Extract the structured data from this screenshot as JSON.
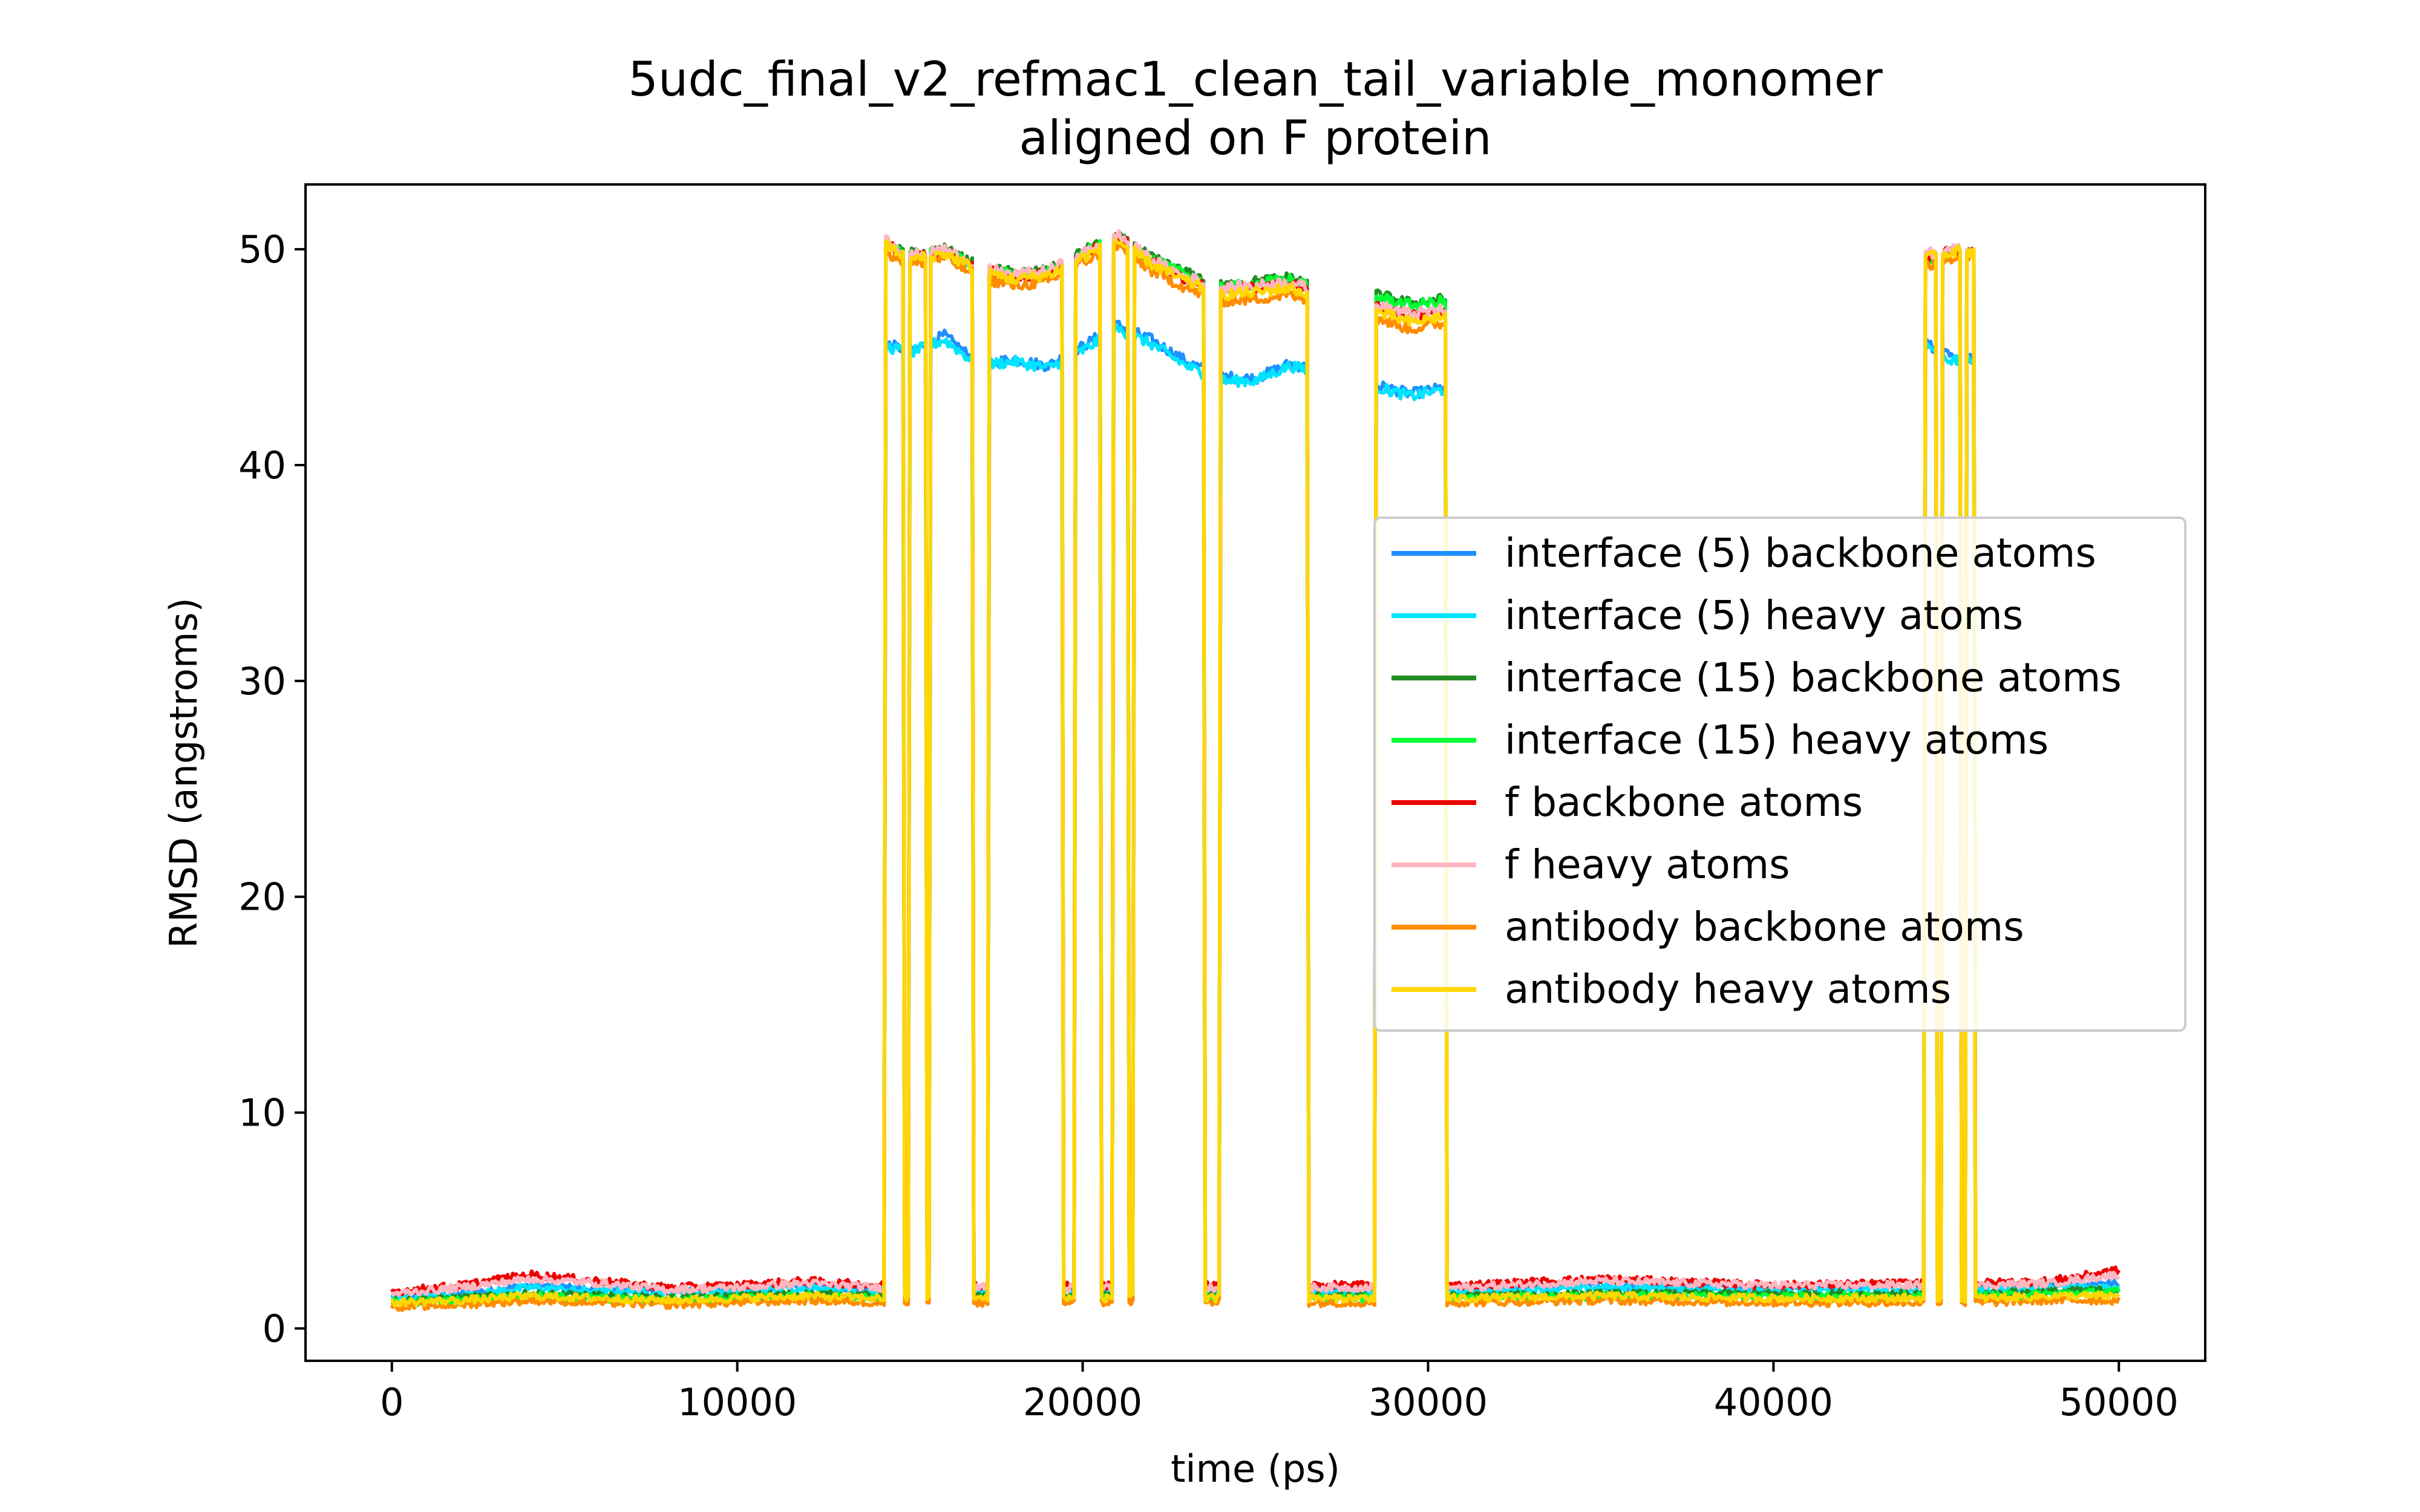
{
  "chart_data": {
    "type": "line",
    "title_lines": [
      "5udc_final_v2_refmac1_clean_tail_variable_monomer",
      "aligned on F protein"
    ],
    "xlabel": "time (ps)",
    "ylabel": "RMSD (angstroms)",
    "xlim": [
      -2500,
      52500
    ],
    "ylim": [
      -1.5,
      53
    ],
    "xticks": [
      0,
      10000,
      20000,
      30000,
      40000,
      50000
    ],
    "yticks": [
      0,
      10,
      20,
      30,
      40,
      50
    ],
    "grid": false,
    "legend_position": "center-right",
    "high_segments": [
      [
        14300,
        14800
      ],
      [
        15000,
        15450
      ],
      [
        15600,
        16800
      ],
      [
        17300,
        19400
      ],
      [
        19800,
        20500
      ],
      [
        20900,
        21300
      ],
      [
        21500,
        23500
      ],
      [
        24000,
        26500
      ],
      [
        28500,
        30500
      ],
      [
        44400,
        44700
      ],
      [
        44900,
        45400
      ],
      [
        45600,
        45800
      ]
    ],
    "series": [
      {
        "name": "interface (5) backbone atoms",
        "color": "#1e90ff",
        "x": [
          0,
          2000,
          4000,
          6000,
          8000,
          10000,
          12000,
          14000,
          14300,
          15000,
          16000,
          17000,
          18000,
          19000,
          20000,
          21000,
          22000,
          23000,
          24000,
          25000,
          26000,
          26500,
          28500,
          29500,
          30500,
          31000,
          35000,
          40000,
          44000,
          44500,
          45200,
          46000,
          48000,
          50000
        ],
        "y": [
          1.5,
          1.6,
          2.0,
          1.8,
          1.7,
          1.8,
          2.0,
          1.8,
          45.6,
          45.3,
          46.0,
          44.7,
          44.9,
          44.6,
          45.5,
          46.5,
          45.8,
          44.8,
          44.1,
          44.0,
          44.7,
          44.5,
          43.7,
          43.3,
          43.6,
          1.8,
          2.0,
          1.9,
          1.9,
          45.6,
          44.9,
          1.9,
          2.0,
          2.1
        ]
      },
      {
        "name": "interface (5) heavy atoms",
        "color": "#00e5ff",
        "x": [
          0,
          2000,
          4000,
          6000,
          8000,
          10000,
          12000,
          14000,
          14300,
          15000,
          16000,
          17000,
          18000,
          19000,
          20000,
          21000,
          22000,
          23000,
          24000,
          25000,
          26000,
          26500,
          28500,
          29500,
          30500,
          31000,
          35000,
          40000,
          44000,
          44500,
          45200,
          46000,
          48000,
          50000
        ],
        "y": [
          1.4,
          1.5,
          1.9,
          1.7,
          1.7,
          1.7,
          1.9,
          1.7,
          45.5,
          45.2,
          45.8,
          44.6,
          44.8,
          44.5,
          45.3,
          46.3,
          45.6,
          44.6,
          43.9,
          43.9,
          44.6,
          44.4,
          43.6,
          43.2,
          43.5,
          1.7,
          1.9,
          1.8,
          1.8,
          45.5,
          44.8,
          1.8,
          1.9,
          1.9
        ]
      },
      {
        "name": "interface (15) backbone atoms",
        "color": "#228b22",
        "x": [
          0,
          2000,
          4000,
          6000,
          8000,
          10000,
          12000,
          14000,
          14300,
          15000,
          16000,
          17000,
          18000,
          19000,
          20000,
          21000,
          22000,
          23000,
          24000,
          25000,
          26000,
          26500,
          28500,
          29500,
          30500,
          31000,
          35000,
          40000,
          44000,
          44500,
          45200,
          46000,
          48000,
          50000
        ],
        "y": [
          1.3,
          1.4,
          1.6,
          1.5,
          1.4,
          1.5,
          1.6,
          1.5,
          50.2,
          49.8,
          50.0,
          49.2,
          48.9,
          49.0,
          49.9,
          50.6,
          49.6,
          48.9,
          48.3,
          48.5,
          48.7,
          48.4,
          47.9,
          47.5,
          47.7,
          1.5,
          1.6,
          1.6,
          1.6,
          49.5,
          49.9,
          1.6,
          1.7,
          1.8
        ]
      },
      {
        "name": "interface (15) heavy atoms",
        "color": "#00ff33",
        "x": [
          0,
          2000,
          4000,
          6000,
          8000,
          10000,
          12000,
          14000,
          14300,
          15000,
          16000,
          17000,
          18000,
          19000,
          20000,
          21000,
          22000,
          23000,
          24000,
          25000,
          26000,
          26500,
          28500,
          29500,
          30500,
          31000,
          35000,
          40000,
          44000,
          44500,
          45200,
          46000,
          48000,
          50000
        ],
        "y": [
          1.2,
          1.3,
          1.5,
          1.4,
          1.3,
          1.4,
          1.5,
          1.4,
          50.1,
          49.7,
          49.9,
          49.1,
          48.8,
          48.9,
          49.8,
          50.5,
          49.5,
          48.8,
          48.2,
          48.4,
          48.6,
          48.3,
          47.8,
          47.4,
          47.6,
          1.4,
          1.5,
          1.5,
          1.5,
          49.4,
          49.8,
          1.5,
          1.6,
          1.7
        ]
      },
      {
        "name": "f backbone atoms",
        "color": "#ee0000",
        "x": [
          0,
          2000,
          4000,
          6000,
          8000,
          10000,
          12000,
          14000,
          14300,
          15000,
          16000,
          17000,
          18000,
          19000,
          20000,
          21000,
          22000,
          23000,
          24000,
          25000,
          26000,
          26500,
          28500,
          29500,
          30500,
          31000,
          35000,
          40000,
          44000,
          44500,
          45200,
          46000,
          48000,
          50000
        ],
        "y": [
          1.7,
          2.0,
          2.5,
          2.2,
          1.9,
          2.0,
          2.2,
          2.0,
          50.3,
          49.6,
          49.9,
          49.1,
          48.7,
          48.9,
          49.7,
          50.6,
          49.4,
          48.6,
          48.1,
          48.2,
          48.4,
          48.1,
          47.3,
          46.9,
          47.1,
          2.0,
          2.3,
          2.0,
          2.1,
          49.7,
          49.9,
          2.1,
          2.2,
          2.7
        ]
      },
      {
        "name": "f heavy atoms",
        "color": "#ffb6c1",
        "x": [
          0,
          2000,
          4000,
          6000,
          8000,
          10000,
          12000,
          14000,
          14300,
          15000,
          16000,
          17000,
          18000,
          19000,
          20000,
          21000,
          22000,
          23000,
          24000,
          25000,
          26000,
          26500,
          28500,
          29500,
          30500,
          31000,
          35000,
          40000,
          44000,
          44500,
          45200,
          46000,
          48000,
          50000
        ],
        "y": [
          1.6,
          1.9,
          2.3,
          2.1,
          1.8,
          1.9,
          2.1,
          1.9,
          50.5,
          49.7,
          50.0,
          49.2,
          48.8,
          49.0,
          49.8,
          50.7,
          49.5,
          48.7,
          48.2,
          48.3,
          48.5,
          48.2,
          47.4,
          47.0,
          47.2,
          1.9,
          2.2,
          2.0,
          2.0,
          49.8,
          50.0,
          2.0,
          2.1,
          2.5
        ]
      },
      {
        "name": "antibody backbone atoms",
        "color": "#ff8c00",
        "x": [
          0,
          2000,
          4000,
          6000,
          8000,
          10000,
          12000,
          14000,
          14300,
          15000,
          16000,
          17000,
          18000,
          19000,
          20000,
          21000,
          22000,
          23000,
          24000,
          25000,
          26000,
          26500,
          28500,
          29500,
          30500,
          31000,
          35000,
          40000,
          44000,
          44500,
          45200,
          46000,
          48000,
          50000
        ],
        "y": [
          1.0,
          1.1,
          1.3,
          1.2,
          1.1,
          1.2,
          1.3,
          1.2,
          49.9,
          49.3,
          49.6,
          48.7,
          48.3,
          48.5,
          49.4,
          50.2,
          49.0,
          48.2,
          47.6,
          47.7,
          47.9,
          47.6,
          46.8,
          46.3,
          46.6,
          1.2,
          1.3,
          1.2,
          1.2,
          49.3,
          49.6,
          1.2,
          1.3,
          1.3
        ]
      },
      {
        "name": "antibody heavy atoms",
        "color": "#ffd700",
        "x": [
          0,
          2000,
          4000,
          6000,
          8000,
          10000,
          12000,
          14000,
          14300,
          15000,
          16000,
          17000,
          18000,
          19000,
          20000,
          21000,
          22000,
          23000,
          24000,
          25000,
          26000,
          26500,
          28500,
          29500,
          30500,
          31000,
          35000,
          40000,
          44000,
          44500,
          45200,
          46000,
          48000,
          50000
        ],
        "y": [
          1.2,
          1.3,
          1.5,
          1.4,
          1.3,
          1.4,
          1.5,
          1.4,
          50.2,
          49.5,
          49.8,
          49.0,
          48.6,
          48.8,
          49.6,
          50.4,
          49.3,
          48.5,
          47.9,
          48.0,
          48.2,
          47.9,
          47.1,
          46.6,
          46.9,
          1.4,
          1.5,
          1.4,
          1.4,
          49.6,
          49.9,
          1.4,
          1.5,
          1.5
        ]
      }
    ]
  }
}
